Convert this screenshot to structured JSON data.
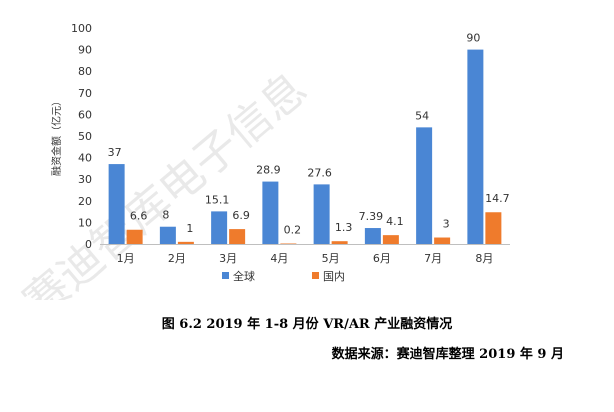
{
  "chart_data": {
    "type": "bar",
    "categories": [
      "1月",
      "2月",
      "3月",
      "4月",
      "5月",
      "6月",
      "7月",
      "8月"
    ],
    "series": [
      {
        "name": "全球",
        "color": "#4a86d4",
        "values": [
          37,
          8,
          15.1,
          28.9,
          27.6,
          7.39,
          54,
          90
        ]
      },
      {
        "name": "国内",
        "color": "#ef7b2c",
        "values": [
          6.6,
          1,
          6.9,
          0.2,
          1.3,
          4.1,
          3,
          14.7
        ]
      }
    ],
    "value_labels": [
      [
        "37",
        "8",
        "15.1",
        "28.9",
        "27.6",
        "7.39",
        "54",
        "90"
      ],
      [
        "6.6",
        "1",
        "6.9",
        "0.2",
        "1.3",
        "4.1",
        "3",
        "14.7"
      ]
    ],
    "ylabel": "融资金额（亿元）",
    "ylim": [
      0,
      100
    ],
    "yticks": [
      0,
      10,
      20,
      30,
      40,
      50,
      60,
      70,
      80,
      90,
      100
    ],
    "grid": false,
    "legend": "bottom"
  },
  "caption": "图 6.2 2019 年 1-8 月份 VR/AR 产业融资情况",
  "source": "数据来源：赛迪智库整理  2019 年 9 月",
  "watermark": "赛迪智库电子信息"
}
